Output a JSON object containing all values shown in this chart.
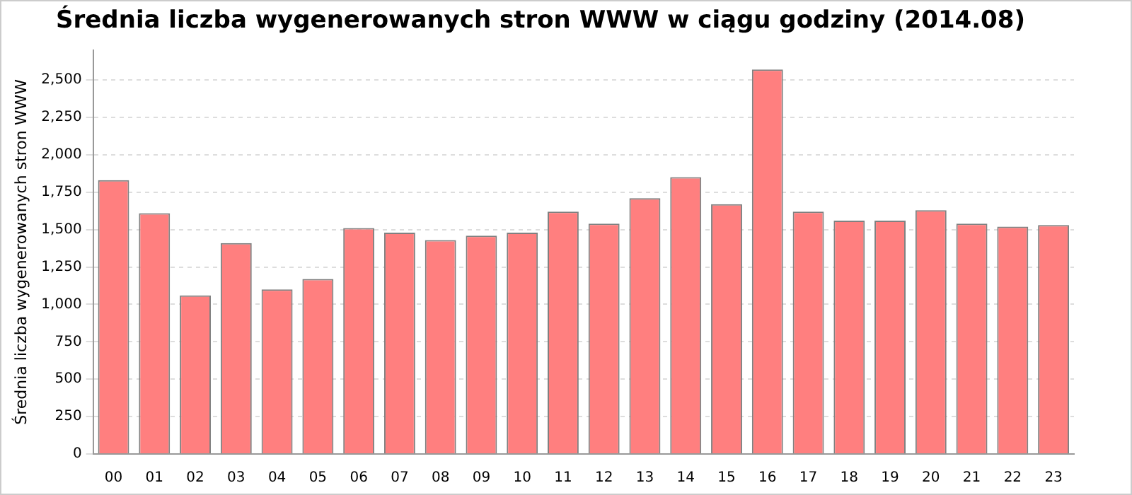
{
  "chart_data": {
    "type": "bar",
    "title": "Średnia liczba wygenerowanych stron WWW w ciągu godziny (2014.08)",
    "ylabel": "Średnia liczba wygenerowanych stron WWW",
    "categories": [
      "00",
      "01",
      "02",
      "03",
      "04",
      "05",
      "06",
      "07",
      "08",
      "09",
      "10",
      "11",
      "12",
      "13",
      "14",
      "15",
      "16",
      "17",
      "18",
      "19",
      "20",
      "21",
      "22",
      "23"
    ],
    "values": [
      1830,
      1610,
      1060,
      1410,
      1100,
      1170,
      1510,
      1480,
      1430,
      1460,
      1480,
      1620,
      1540,
      1710,
      1850,
      1670,
      2570,
      1620,
      1560,
      1560,
      1630,
      1540,
      1520,
      1530
    ],
    "color": "#ff7f7f",
    "ylim": [
      0,
      2700
    ],
    "yticks": [
      0,
      250,
      500,
      750,
      {
        "value": 1000,
        "label": "1,000"
      },
      {
        "value": 1250,
        "label": "1,250"
      },
      {
        "value": 1500,
        "label": "1,500"
      },
      {
        "value": 1750,
        "label": "1,750"
      },
      {
        "value": 2000,
        "label": "2,000"
      },
      {
        "value": 2250,
        "label": "2,250"
      },
      {
        "value": 2500,
        "label": "2,500"
      }
    ],
    "grid": "y"
  }
}
